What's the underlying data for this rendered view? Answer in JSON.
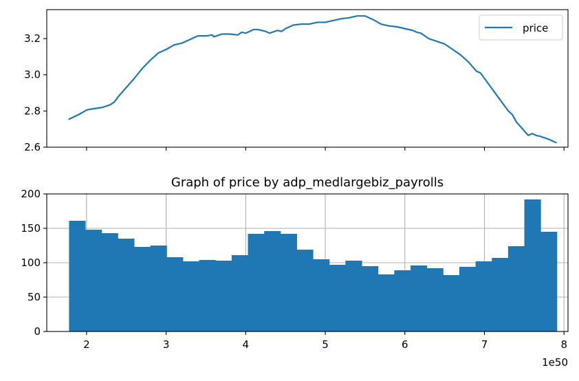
{
  "chart_data": [
    {
      "type": "line",
      "title": "",
      "xlabel": "",
      "ylabel": "",
      "xlim": [
        1.5,
        8.05
      ],
      "ylim": [
        2.6,
        3.36
      ],
      "x_ticks": [
        2,
        3,
        4,
        5,
        6,
        7,
        8
      ],
      "x_tick_labels_visible": false,
      "y_ticks": [
        2.6,
        2.8,
        3.0,
        3.2
      ],
      "y_tick_labels": [
        "2.6",
        "2.8",
        "3.0",
        "3.2"
      ],
      "grid": false,
      "legend": {
        "placement": "top-right",
        "entries": [
          "price"
        ]
      },
      "series": [
        {
          "name": "price",
          "color": "#1f77b4",
          "x": [
            1.78,
            1.9,
            2.0,
            2.05,
            2.2,
            2.3,
            2.35,
            2.4,
            2.5,
            2.6,
            2.7,
            2.8,
            2.9,
            3.0,
            3.1,
            3.2,
            3.3,
            3.4,
            3.5,
            3.58,
            3.6,
            3.7,
            3.75,
            3.8,
            3.9,
            3.95,
            4.0,
            4.1,
            4.15,
            4.2,
            4.25,
            4.3,
            4.4,
            4.45,
            4.5,
            4.6,
            4.7,
            4.8,
            4.9,
            5.0,
            5.1,
            5.2,
            5.3,
            5.4,
            5.5,
            5.6,
            5.7,
            5.8,
            5.9,
            6.0,
            6.1,
            6.15,
            6.2,
            6.3,
            6.4,
            6.5,
            6.6,
            6.7,
            6.8,
            6.9,
            6.95,
            7.0,
            7.1,
            7.2,
            7.3,
            7.35,
            7.4,
            7.5,
            7.55,
            7.6,
            7.65,
            7.7,
            7.8,
            7.9
          ],
          "y": [
            2.755,
            2.78,
            2.805,
            2.81,
            2.82,
            2.835,
            2.85,
            2.88,
            2.93,
            2.98,
            3.035,
            3.08,
            3.12,
            3.14,
            3.165,
            3.175,
            3.195,
            3.215,
            3.215,
            3.22,
            3.21,
            3.225,
            3.225,
            3.225,
            3.22,
            3.235,
            3.23,
            3.25,
            3.25,
            3.245,
            3.24,
            3.23,
            3.245,
            3.24,
            3.255,
            3.275,
            3.28,
            3.28,
            3.29,
            3.29,
            3.3,
            3.31,
            3.315,
            3.325,
            3.325,
            3.305,
            3.28,
            3.27,
            3.265,
            3.255,
            3.245,
            3.235,
            3.23,
            3.2,
            3.185,
            3.17,
            3.14,
            3.11,
            3.07,
            3.02,
            3.01,
            2.98,
            2.92,
            2.86,
            2.8,
            2.78,
            2.74,
            2.69,
            2.665,
            2.675,
            2.665,
            2.66,
            2.645,
            2.625
          ]
        }
      ]
    },
    {
      "type": "bar",
      "title": "Graph of price by adp_medlargebiz_payrolls",
      "xlabel": "",
      "ylabel": "",
      "xlim": [
        1.5,
        8.05
      ],
      "ylim": [
        0,
        200
      ],
      "x_ticks": [
        2,
        3,
        4,
        5,
        6,
        7,
        8
      ],
      "x_tick_labels": [
        "2",
        "3",
        "4",
        "5",
        "6",
        "7",
        "8"
      ],
      "x_offset_label": "1e50",
      "y_ticks": [
        0,
        50,
        100,
        150,
        200
      ],
      "y_tick_labels": [
        "0",
        "50",
        "100",
        "150",
        "200"
      ],
      "grid": true,
      "bar_color": "#1f77b4",
      "bin_start": 1.78,
      "bin_end": 7.91,
      "counts": [
        161,
        148,
        143,
        135,
        123,
        125,
        108,
        102,
        104,
        103,
        111,
        142,
        146,
        142,
        119,
        105,
        97,
        103,
        95,
        83,
        89,
        96,
        92,
        82,
        94,
        102,
        107,
        124,
        192,
        145
      ]
    }
  ]
}
